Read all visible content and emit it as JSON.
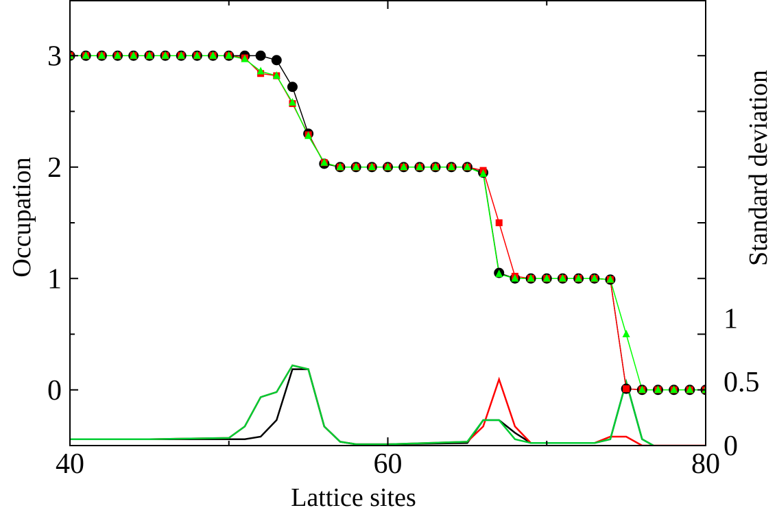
{
  "chart_data": {
    "type": "line",
    "xlabel": "Lattice sites",
    "ylabel": "Occupation",
    "y2label": "Standard deviation",
    "xlim": [
      40,
      80
    ],
    "ylim": [
      -0.5,
      3.5
    ],
    "y2lim": [
      0,
      3.5
    ],
    "xticks": [
      "40",
      "60",
      "80"
    ],
    "yticks": [
      "0",
      "1",
      "2",
      "3"
    ],
    "y2ticks": [
      "0",
      "0.5",
      "1"
    ],
    "grid": false,
    "legend": "none",
    "occupation_series": [
      {
        "color": "#000000",
        "marker": "circle",
        "x": [
          40,
          41,
          42,
          43,
          44,
          45,
          46,
          47,
          48,
          49,
          50,
          51,
          52,
          53,
          54,
          55,
          56,
          57,
          58,
          59,
          60,
          61,
          62,
          63,
          64,
          65,
          66,
          67,
          68,
          69,
          70,
          71,
          72,
          73,
          74,
          75,
          76,
          77,
          78,
          79,
          80
        ],
        "y": [
          3,
          3,
          3,
          3,
          3,
          3,
          3,
          3,
          3,
          3,
          3,
          3,
          3,
          2.96,
          2.72,
          2.3,
          2.03,
          2,
          2,
          2,
          2,
          2,
          2,
          2,
          2,
          2,
          1.95,
          1.05,
          1,
          1,
          1,
          1,
          1,
          1,
          0.99,
          0.01,
          0,
          0,
          0,
          0,
          0
        ]
      },
      {
        "color": "#ff0000",
        "marker": "square",
        "x": [
          40,
          41,
          42,
          43,
          44,
          45,
          46,
          47,
          48,
          49,
          50,
          51,
          52,
          53,
          54,
          55,
          56,
          57,
          58,
          59,
          60,
          61,
          62,
          63,
          64,
          65,
          66,
          67,
          68,
          69,
          70,
          71,
          72,
          73,
          74,
          75,
          76,
          77,
          78,
          79,
          80
        ],
        "y": [
          3,
          3,
          3,
          3,
          3,
          3,
          3,
          3,
          3,
          3,
          3,
          2.98,
          2.84,
          2.82,
          2.57,
          2.29,
          2.04,
          2,
          2,
          2,
          2,
          2,
          2,
          2,
          2,
          2,
          1.97,
          1.5,
          1.02,
          1,
          1,
          1,
          1,
          1,
          0.99,
          0.01,
          0,
          0,
          0,
          0,
          0
        ]
      },
      {
        "color": "#00ff00",
        "marker": "triangle",
        "x": [
          40,
          41,
          42,
          43,
          44,
          45,
          46,
          47,
          48,
          49,
          50,
          51,
          52,
          53,
          54,
          55,
          56,
          57,
          58,
          59,
          60,
          61,
          62,
          63,
          64,
          65,
          66,
          67,
          68,
          69,
          70,
          71,
          72,
          73,
          74,
          75,
          76,
          77,
          78,
          79,
          80
        ],
        "y": [
          3,
          3,
          3,
          3,
          3,
          3,
          3,
          3,
          3,
          3,
          3,
          2.97,
          2.86,
          2.82,
          2.58,
          2.28,
          2.04,
          2,
          2,
          2,
          2,
          2,
          2,
          2,
          2,
          2,
          1.94,
          1.04,
          1,
          1,
          1,
          1,
          1,
          1,
          0.99,
          0.5,
          0,
          0,
          0,
          0,
          0
        ]
      }
    ],
    "std_series": [
      {
        "color": "#000000",
        "x": [
          40,
          45,
          50,
          51,
          52,
          53,
          54,
          55,
          56,
          57,
          58,
          60,
          65,
          66,
          67,
          68,
          69,
          70,
          71,
          72,
          73,
          74,
          75,
          76,
          77,
          78,
          79,
          80
        ],
        "y": [
          0.05,
          0.05,
          0.05,
          0.05,
          0.07,
          0.2,
          0.6,
          0.6,
          0.15,
          0.03,
          0.01,
          0.01,
          0.02,
          0.2,
          0.2,
          0.1,
          0.02,
          0.02,
          0.02,
          0.02,
          0.02,
          0.05,
          0.5,
          0.05,
          -0.02,
          -0.02,
          -0.02,
          -0.02
        ]
      },
      {
        "color": "#ff0000",
        "x": [
          40,
          45,
          50,
          51,
          52,
          53,
          54,
          55,
          56,
          57,
          58,
          60,
          65,
          66,
          67,
          68,
          69,
          70,
          71,
          72,
          73,
          74,
          75,
          76,
          77,
          78,
          79,
          80
        ],
        "y": [
          0.05,
          0.05,
          0.06,
          0.15,
          0.38,
          0.42,
          0.63,
          0.6,
          0.15,
          0.03,
          0.01,
          0.01,
          0.03,
          0.15,
          0.52,
          0.15,
          0.02,
          0.02,
          0.02,
          0.02,
          0.02,
          0.07,
          0.07,
          0.0,
          0.0,
          0.0,
          0.0,
          0.0
        ]
      },
      {
        "color": "#00cc33",
        "x": [
          40,
          45,
          50,
          51,
          52,
          53,
          54,
          55,
          56,
          57,
          58,
          60,
          65,
          66,
          67,
          68,
          69,
          70,
          71,
          72,
          73,
          74,
          75,
          76,
          77,
          78,
          79,
          80
        ],
        "y": [
          0.05,
          0.05,
          0.06,
          0.15,
          0.38,
          0.42,
          0.63,
          0.6,
          0.15,
          0.03,
          0.01,
          0.01,
          0.03,
          0.2,
          0.2,
          0.05,
          0.02,
          0.02,
          0.02,
          0.02,
          0.02,
          0.05,
          0.5,
          0.05,
          -0.02,
          -0.02,
          -0.02,
          -0.02
        ]
      }
    ]
  }
}
